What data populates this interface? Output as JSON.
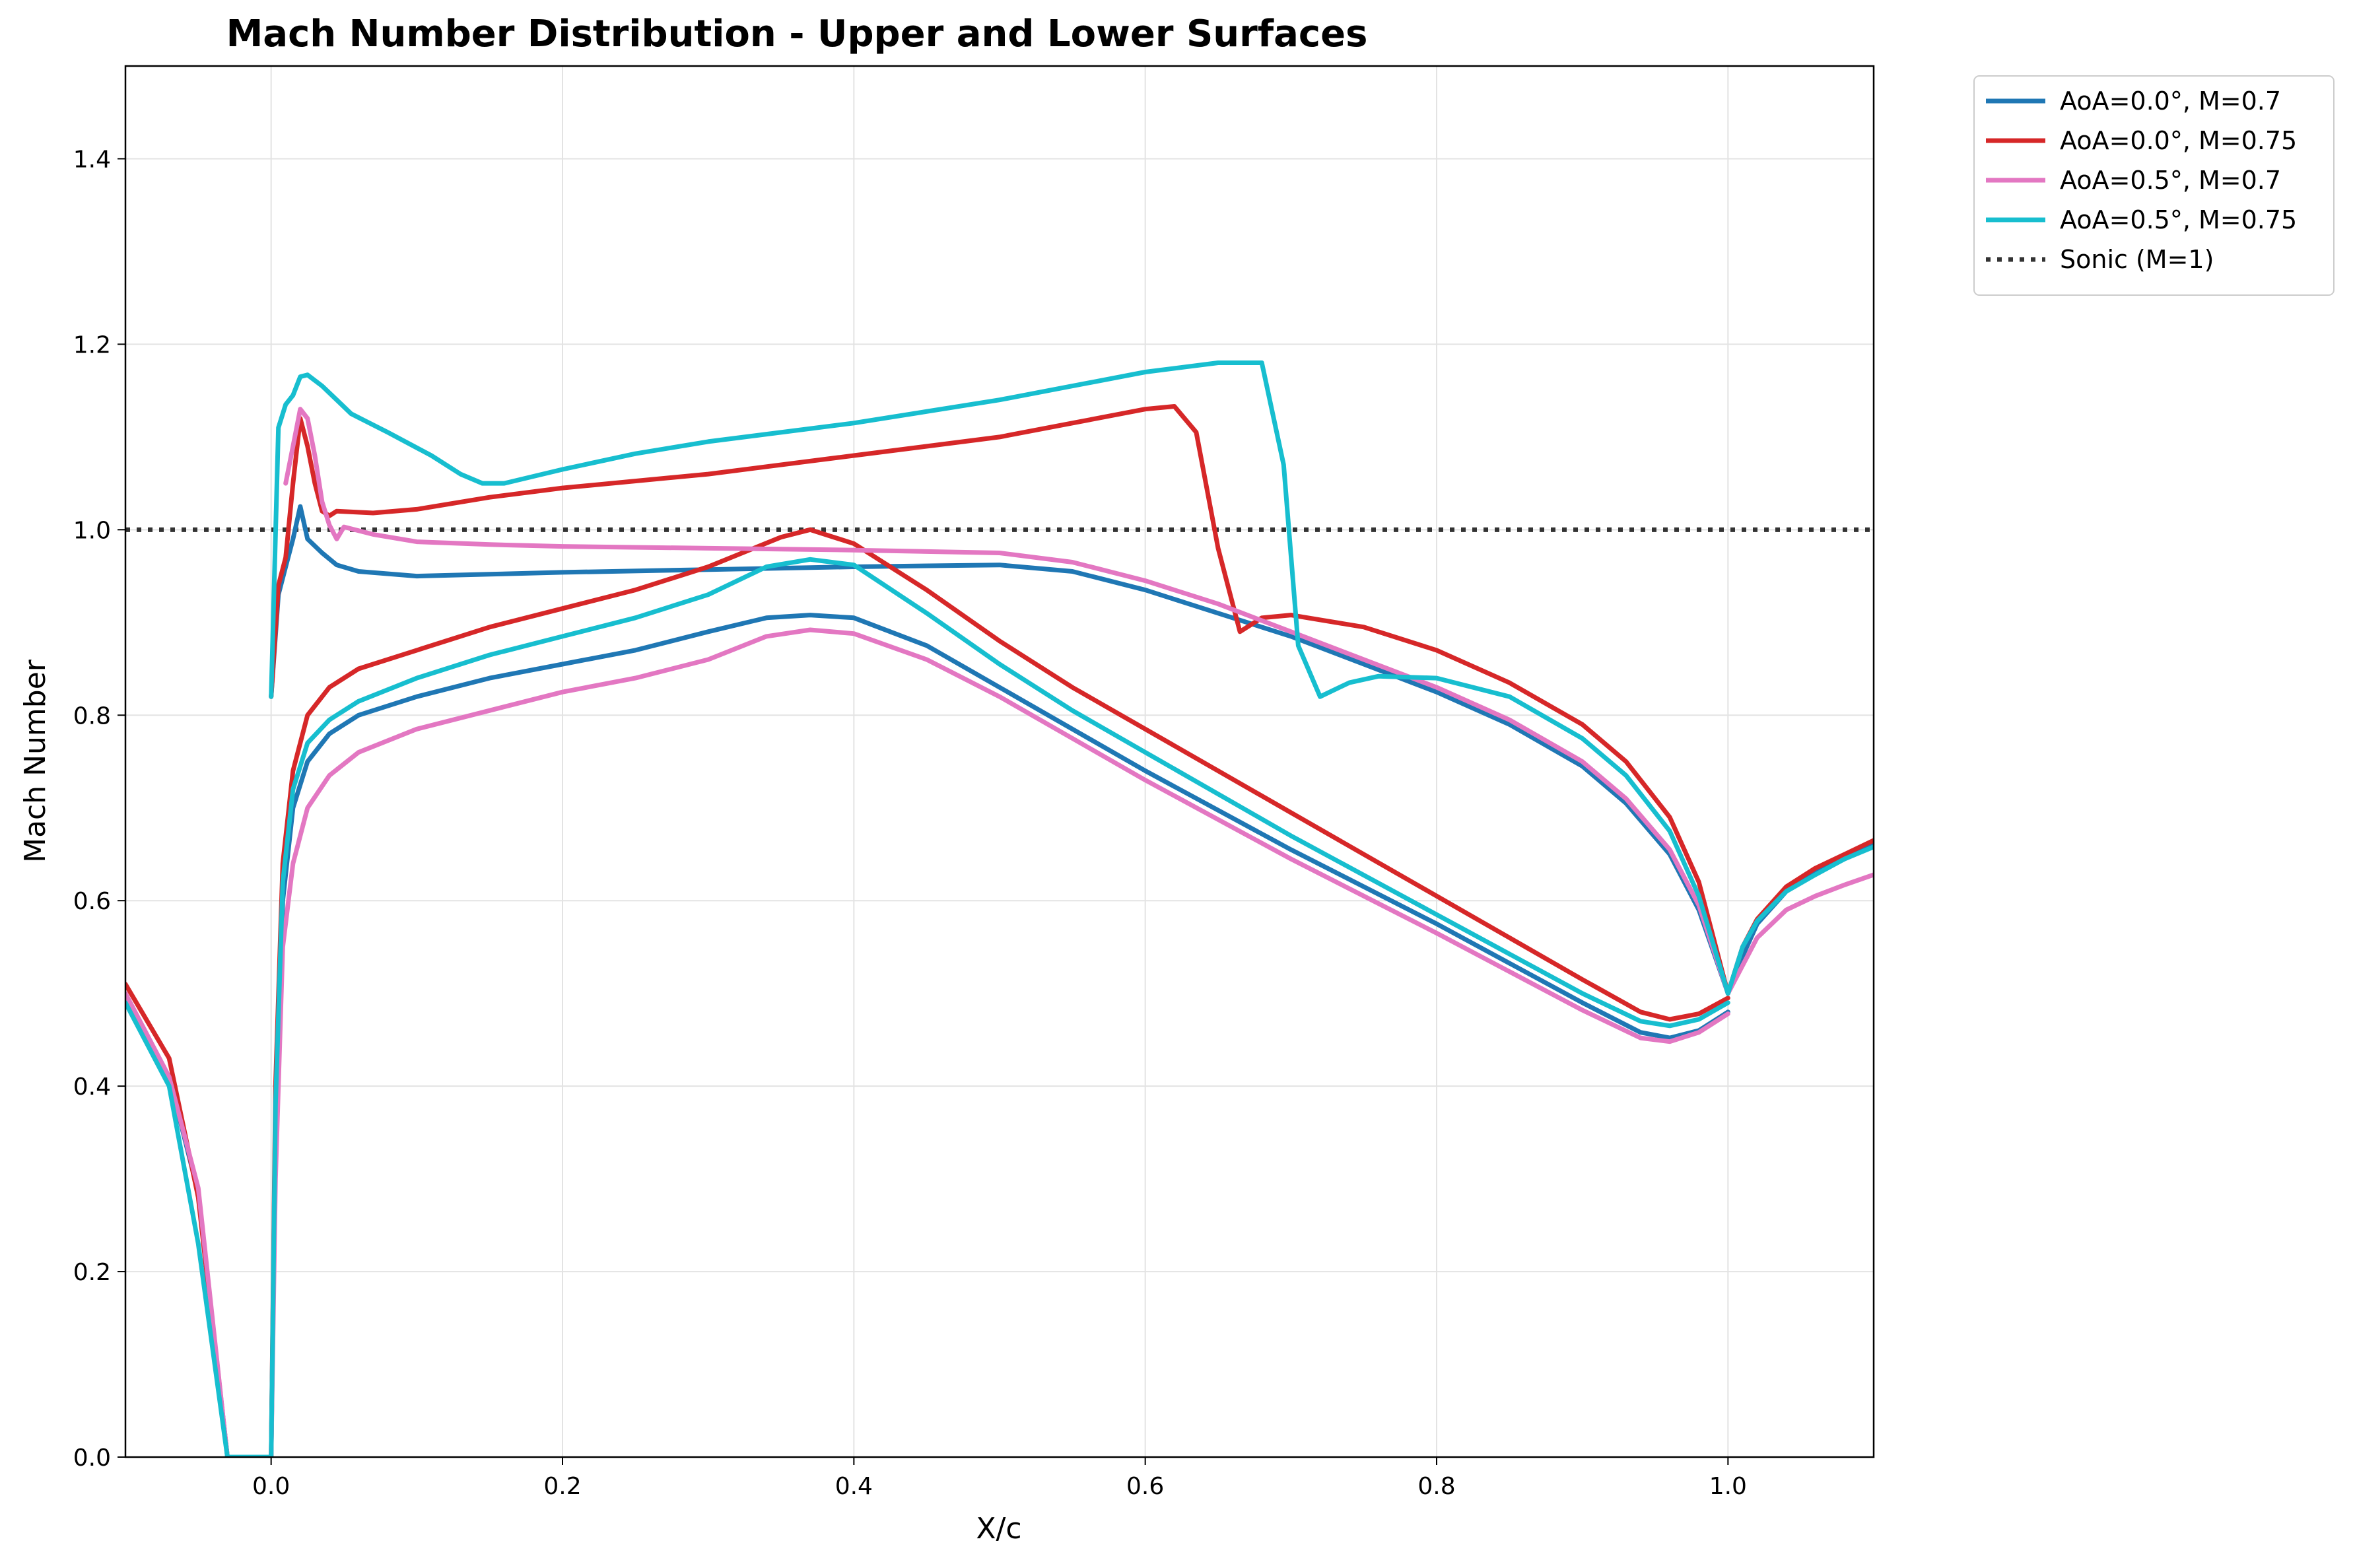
{
  "chart_data": {
    "type": "line",
    "title": "Mach Number Distribution - Upper and Lower Surfaces",
    "xlabel": "X/c",
    "ylabel": "Mach Number",
    "xlim": [
      -0.1,
      1.1
    ],
    "ylim": [
      0.0,
      1.5
    ],
    "xticks": [
      0.0,
      0.2,
      0.4,
      0.6,
      0.8,
      1.0
    ],
    "xtick_labels": [
      "0.0",
      "0.2",
      "0.4",
      "0.6",
      "0.8",
      "1.0"
    ],
    "yticks": [
      0.0,
      0.2,
      0.4,
      0.6,
      0.8,
      1.0,
      1.2,
      1.4
    ],
    "ytick_labels": [
      "0.0",
      "0.2",
      "0.4",
      "0.6",
      "0.8",
      "1.0",
      "1.2",
      "1.4"
    ],
    "grid": true,
    "legend_position": "outside top-right",
    "legend": [
      {
        "label": "AoA=0.0°, M=0.7",
        "color": "#1f77b4",
        "style": "solid"
      },
      {
        "label": "AoA=0.0°, M=0.75",
        "color": "#d62728",
        "style": "solid"
      },
      {
        "label": "AoA=0.5°, M=0.7",
        "color": "#e377c2",
        "style": "solid"
      },
      {
        "label": "AoA=0.5°, M=0.75",
        "color": "#17becf",
        "style": "solid"
      },
      {
        "label": "Sonic (M=1)",
        "color": "#333333",
        "style": "dotted"
      }
    ],
    "reference_lines": [
      {
        "name": "Sonic (M=1)",
        "y": 1.0
      }
    ],
    "series": [
      {
        "name": "AoA=0.0°, M=0.7",
        "color": "#1f77b4",
        "upper": [
          [
            0.0,
            0.82
          ],
          [
            0.005,
            0.93
          ],
          [
            0.01,
            0.96
          ],
          [
            0.015,
            0.99
          ],
          [
            0.02,
            1.025
          ],
          [
            0.025,
            0.99
          ],
          [
            0.035,
            0.975
          ],
          [
            0.045,
            0.962
          ],
          [
            0.06,
            0.955
          ],
          [
            0.1,
            0.95
          ],
          [
            0.15,
            0.952
          ],
          [
            0.2,
            0.954
          ],
          [
            0.3,
            0.957
          ],
          [
            0.4,
            0.96
          ],
          [
            0.5,
            0.962
          ],
          [
            0.55,
            0.955
          ],
          [
            0.6,
            0.935
          ],
          [
            0.65,
            0.91
          ],
          [
            0.7,
            0.885
          ],
          [
            0.75,
            0.855
          ],
          [
            0.8,
            0.825
          ],
          [
            0.85,
            0.79
          ],
          [
            0.9,
            0.745
          ],
          [
            0.93,
            0.705
          ],
          [
            0.96,
            0.65
          ],
          [
            0.98,
            0.59
          ],
          [
            1.0,
            0.5
          ]
        ],
        "lower": [
          [
            -0.1,
            0.49
          ],
          [
            -0.07,
            0.41
          ],
          [
            -0.05,
            0.285
          ],
          [
            -0.03,
            0.0
          ],
          [
            0.0,
            0.0
          ],
          [
            0.003,
            0.35
          ],
          [
            0.008,
            0.6
          ],
          [
            0.015,
            0.7
          ],
          [
            0.025,
            0.75
          ],
          [
            0.04,
            0.78
          ],
          [
            0.06,
            0.8
          ],
          [
            0.1,
            0.82
          ],
          [
            0.15,
            0.84
          ],
          [
            0.2,
            0.855
          ],
          [
            0.25,
            0.87
          ],
          [
            0.3,
            0.89
          ],
          [
            0.34,
            0.905
          ],
          [
            0.37,
            0.908
          ],
          [
            0.4,
            0.905
          ],
          [
            0.45,
            0.875
          ],
          [
            0.5,
            0.83
          ],
          [
            0.55,
            0.785
          ],
          [
            0.6,
            0.74
          ],
          [
            0.7,
            0.655
          ],
          [
            0.8,
            0.575
          ],
          [
            0.9,
            0.49
          ],
          [
            0.94,
            0.458
          ],
          [
            0.96,
            0.452
          ],
          [
            0.98,
            0.46
          ],
          [
            1.0,
            0.48
          ]
        ],
        "wake": [
          [
            1.0,
            0.5
          ],
          [
            1.01,
            0.54
          ],
          [
            1.02,
            0.575
          ],
          [
            1.04,
            0.61
          ],
          [
            1.06,
            0.63
          ],
          [
            1.08,
            0.645
          ],
          [
            1.1,
            0.66
          ]
        ]
      },
      {
        "name": "AoA=0.0°, M=0.75",
        "color": "#d62728",
        "upper": [
          [
            0.0,
            0.82
          ],
          [
            0.005,
            0.94
          ],
          [
            0.01,
            0.97
          ],
          [
            0.015,
            1.05
          ],
          [
            0.02,
            1.12
          ],
          [
            0.025,
            1.09
          ],
          [
            0.03,
            1.05
          ],
          [
            0.035,
            1.02
          ],
          [
            0.04,
            1.015
          ],
          [
            0.045,
            1.02
          ],
          [
            0.07,
            1.018
          ],
          [
            0.1,
            1.022
          ],
          [
            0.15,
            1.035
          ],
          [
            0.2,
            1.045
          ],
          [
            0.3,
            1.06
          ],
          [
            0.4,
            1.08
          ],
          [
            0.5,
            1.1
          ],
          [
            0.6,
            1.13
          ],
          [
            0.62,
            1.133
          ],
          [
            0.635,
            1.105
          ],
          [
            0.65,
            0.98
          ],
          [
            0.665,
            0.89
          ],
          [
            0.68,
            0.905
          ],
          [
            0.7,
            0.908
          ],
          [
            0.75,
            0.895
          ],
          [
            0.8,
            0.87
          ],
          [
            0.85,
            0.835
          ],
          [
            0.9,
            0.79
          ],
          [
            0.93,
            0.75
          ],
          [
            0.96,
            0.69
          ],
          [
            0.98,
            0.62
          ],
          [
            1.0,
            0.5
          ]
        ],
        "lower": [
          [
            -0.1,
            0.51
          ],
          [
            -0.07,
            0.43
          ],
          [
            -0.05,
            0.28
          ],
          [
            -0.03,
            0.0
          ],
          [
            0.0,
            0.0
          ],
          [
            0.003,
            0.4
          ],
          [
            0.008,
            0.64
          ],
          [
            0.015,
            0.74
          ],
          [
            0.025,
            0.8
          ],
          [
            0.04,
            0.83
          ],
          [
            0.06,
            0.85
          ],
          [
            0.1,
            0.87
          ],
          [
            0.15,
            0.895
          ],
          [
            0.2,
            0.915
          ],
          [
            0.25,
            0.935
          ],
          [
            0.3,
            0.96
          ],
          [
            0.35,
            0.992
          ],
          [
            0.37,
            1.0
          ],
          [
            0.4,
            0.985
          ],
          [
            0.45,
            0.935
          ],
          [
            0.5,
            0.88
          ],
          [
            0.55,
            0.83
          ],
          [
            0.6,
            0.785
          ],
          [
            0.7,
            0.695
          ],
          [
            0.8,
            0.605
          ],
          [
            0.9,
            0.515
          ],
          [
            0.94,
            0.48
          ],
          [
            0.96,
            0.472
          ],
          [
            0.98,
            0.478
          ],
          [
            1.0,
            0.495
          ]
        ],
        "wake": [
          [
            1.0,
            0.5
          ],
          [
            1.01,
            0.55
          ],
          [
            1.02,
            0.58
          ],
          [
            1.04,
            0.615
          ],
          [
            1.06,
            0.635
          ],
          [
            1.08,
            0.65
          ],
          [
            1.1,
            0.665
          ]
        ]
      },
      {
        "name": "AoA=0.5°, M=0.7",
        "color": "#e377c2",
        "upper": [
          [
            0.01,
            1.05
          ],
          [
            0.015,
            1.09
          ],
          [
            0.02,
            1.13
          ],
          [
            0.025,
            1.12
          ],
          [
            0.03,
            1.08
          ],
          [
            0.035,
            1.03
          ],
          [
            0.04,
            1.005
          ],
          [
            0.045,
            0.99
          ],
          [
            0.05,
            1.003
          ],
          [
            0.07,
            0.995
          ],
          [
            0.1,
            0.987
          ],
          [
            0.15,
            0.984
          ],
          [
            0.2,
            0.982
          ],
          [
            0.3,
            0.98
          ],
          [
            0.4,
            0.978
          ],
          [
            0.5,
            0.975
          ],
          [
            0.55,
            0.965
          ],
          [
            0.6,
            0.945
          ],
          [
            0.65,
            0.92
          ],
          [
            0.7,
            0.89
          ],
          [
            0.75,
            0.86
          ],
          [
            0.8,
            0.83
          ],
          [
            0.85,
            0.795
          ],
          [
            0.9,
            0.75
          ],
          [
            0.93,
            0.71
          ],
          [
            0.96,
            0.655
          ],
          [
            0.98,
            0.595
          ],
          [
            1.0,
            0.5
          ]
        ],
        "lower": [
          [
            -0.1,
            0.5
          ],
          [
            -0.07,
            0.41
          ],
          [
            -0.05,
            0.29
          ],
          [
            -0.03,
            0.0
          ],
          [
            0.0,
            0.0
          ],
          [
            0.003,
            0.3
          ],
          [
            0.008,
            0.55
          ],
          [
            0.015,
            0.64
          ],
          [
            0.025,
            0.7
          ],
          [
            0.04,
            0.735
          ],
          [
            0.06,
            0.76
          ],
          [
            0.1,
            0.785
          ],
          [
            0.15,
            0.805
          ],
          [
            0.2,
            0.825
          ],
          [
            0.25,
            0.84
          ],
          [
            0.3,
            0.86
          ],
          [
            0.34,
            0.885
          ],
          [
            0.37,
            0.892
          ],
          [
            0.4,
            0.888
          ],
          [
            0.45,
            0.86
          ],
          [
            0.5,
            0.82
          ],
          [
            0.55,
            0.775
          ],
          [
            0.6,
            0.73
          ],
          [
            0.7,
            0.645
          ],
          [
            0.8,
            0.565
          ],
          [
            0.9,
            0.482
          ],
          [
            0.94,
            0.452
          ],
          [
            0.96,
            0.448
          ],
          [
            0.98,
            0.458
          ],
          [
            1.0,
            0.478
          ]
        ],
        "wake": [
          [
            1.0,
            0.5
          ],
          [
            1.01,
            0.53
          ],
          [
            1.02,
            0.56
          ],
          [
            1.04,
            0.59
          ],
          [
            1.06,
            0.605
          ],
          [
            1.08,
            0.617
          ],
          [
            1.1,
            0.628
          ]
        ]
      },
      {
        "name": "AoA=0.5°, M=0.75",
        "color": "#17becf",
        "upper": [
          [
            0.0,
            0.82
          ],
          [
            0.005,
            1.11
          ],
          [
            0.01,
            1.135
          ],
          [
            0.015,
            1.145
          ],
          [
            0.02,
            1.165
          ],
          [
            0.025,
            1.167
          ],
          [
            0.035,
            1.155
          ],
          [
            0.045,
            1.14
          ],
          [
            0.055,
            1.125
          ],
          [
            0.08,
            1.105
          ],
          [
            0.11,
            1.08
          ],
          [
            0.13,
            1.06
          ],
          [
            0.145,
            1.05
          ],
          [
            0.16,
            1.05
          ],
          [
            0.2,
            1.065
          ],
          [
            0.25,
            1.082
          ],
          [
            0.3,
            1.095
          ],
          [
            0.4,
            1.115
          ],
          [
            0.5,
            1.14
          ],
          [
            0.6,
            1.17
          ],
          [
            0.65,
            1.18
          ],
          [
            0.68,
            1.18
          ],
          [
            0.695,
            1.07
          ],
          [
            0.705,
            0.875
          ],
          [
            0.72,
            0.82
          ],
          [
            0.74,
            0.835
          ],
          [
            0.76,
            0.842
          ],
          [
            0.8,
            0.84
          ],
          [
            0.85,
            0.82
          ],
          [
            0.9,
            0.775
          ],
          [
            0.93,
            0.735
          ],
          [
            0.96,
            0.675
          ],
          [
            0.98,
            0.605
          ],
          [
            1.0,
            0.5
          ]
        ],
        "lower": [
          [
            -0.1,
            0.49
          ],
          [
            -0.07,
            0.4
          ],
          [
            -0.05,
            0.23
          ],
          [
            -0.03,
            0.0
          ],
          [
            0.0,
            0.0
          ],
          [
            0.003,
            0.38
          ],
          [
            0.008,
            0.62
          ],
          [
            0.015,
            0.72
          ],
          [
            0.025,
            0.77
          ],
          [
            0.04,
            0.795
          ],
          [
            0.06,
            0.815
          ],
          [
            0.1,
            0.84
          ],
          [
            0.15,
            0.865
          ],
          [
            0.2,
            0.885
          ],
          [
            0.25,
            0.905
          ],
          [
            0.3,
            0.93
          ],
          [
            0.34,
            0.96
          ],
          [
            0.37,
            0.968
          ],
          [
            0.4,
            0.962
          ],
          [
            0.45,
            0.91
          ],
          [
            0.5,
            0.855
          ],
          [
            0.55,
            0.805
          ],
          [
            0.6,
            0.76
          ],
          [
            0.7,
            0.67
          ],
          [
            0.8,
            0.585
          ],
          [
            0.9,
            0.5
          ],
          [
            0.94,
            0.47
          ],
          [
            0.96,
            0.465
          ],
          [
            0.98,
            0.472
          ],
          [
            1.0,
            0.49
          ]
        ],
        "wake": [
          [
            1.0,
            0.5
          ],
          [
            1.01,
            0.55
          ],
          [
            1.02,
            0.578
          ],
          [
            1.04,
            0.61
          ],
          [
            1.06,
            0.628
          ],
          [
            1.08,
            0.645
          ],
          [
            1.1,
            0.658
          ]
        ]
      }
    ]
  }
}
